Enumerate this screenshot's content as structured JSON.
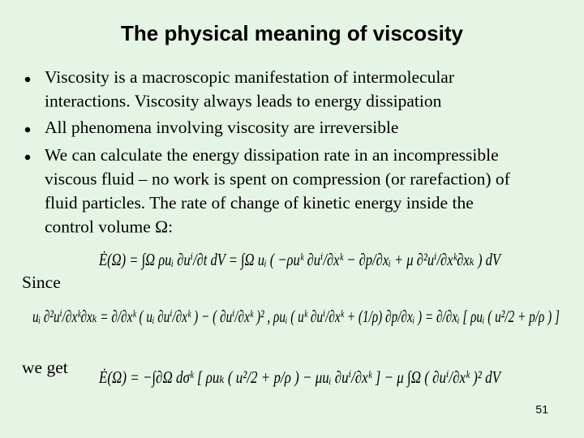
{
  "title": "The physical meaning of viscosity",
  "bullets": [
    {
      "lines": [
        "Viscosity is a macroscopic manifestation of intermolecular",
        "interactions. Viscosity always leads to energy dissipation"
      ]
    },
    {
      "lines": [
        "All phenomena involving viscosity are irreversible"
      ]
    },
    {
      "lines": [
        "We can calculate the energy dissipation rate in an incompressible",
        "viscous fluid – no work is spent on compression (or rarefaction) of",
        "fluid particles. The rate of change of kinetic energy inside the",
        "control volume Ω:"
      ]
    }
  ],
  "equations": [
    "Ė(Ω) = ∫Ω ρuᵢ ∂uⁱ/∂t dV = ∫Ω uᵢ ( −ρuᵏ ∂uⁱ/∂xᵏ − ∂p/∂xᵢ + μ ∂²uⁱ/∂xᵏ∂xₖ ) dV",
    "uᵢ ∂²uⁱ/∂xᵏ∂xₖ = ∂/∂xᵏ ( uᵢ ∂uⁱ/∂xᵏ ) − ( ∂uⁱ/∂xᵏ )² ,  ρuᵢ ( uᵏ ∂uⁱ/∂xᵏ + (1/ρ) ∂p/∂xᵢ ) = ∂/∂xᵢ [ ρuᵢ ( u²/2 + p/ρ ) ]",
    "Ė(Ω) = −∫∂Ω dσᵏ [ ρuₖ ( u²/2 + p/ρ ) − μuᵢ ∂uⁱ/∂xᵏ ] − μ ∫Ω ( ∂uⁱ/∂xᵏ )² dV"
  ],
  "labels": {
    "since": "Since",
    "we_get": "we get"
  },
  "page_number": "51"
}
